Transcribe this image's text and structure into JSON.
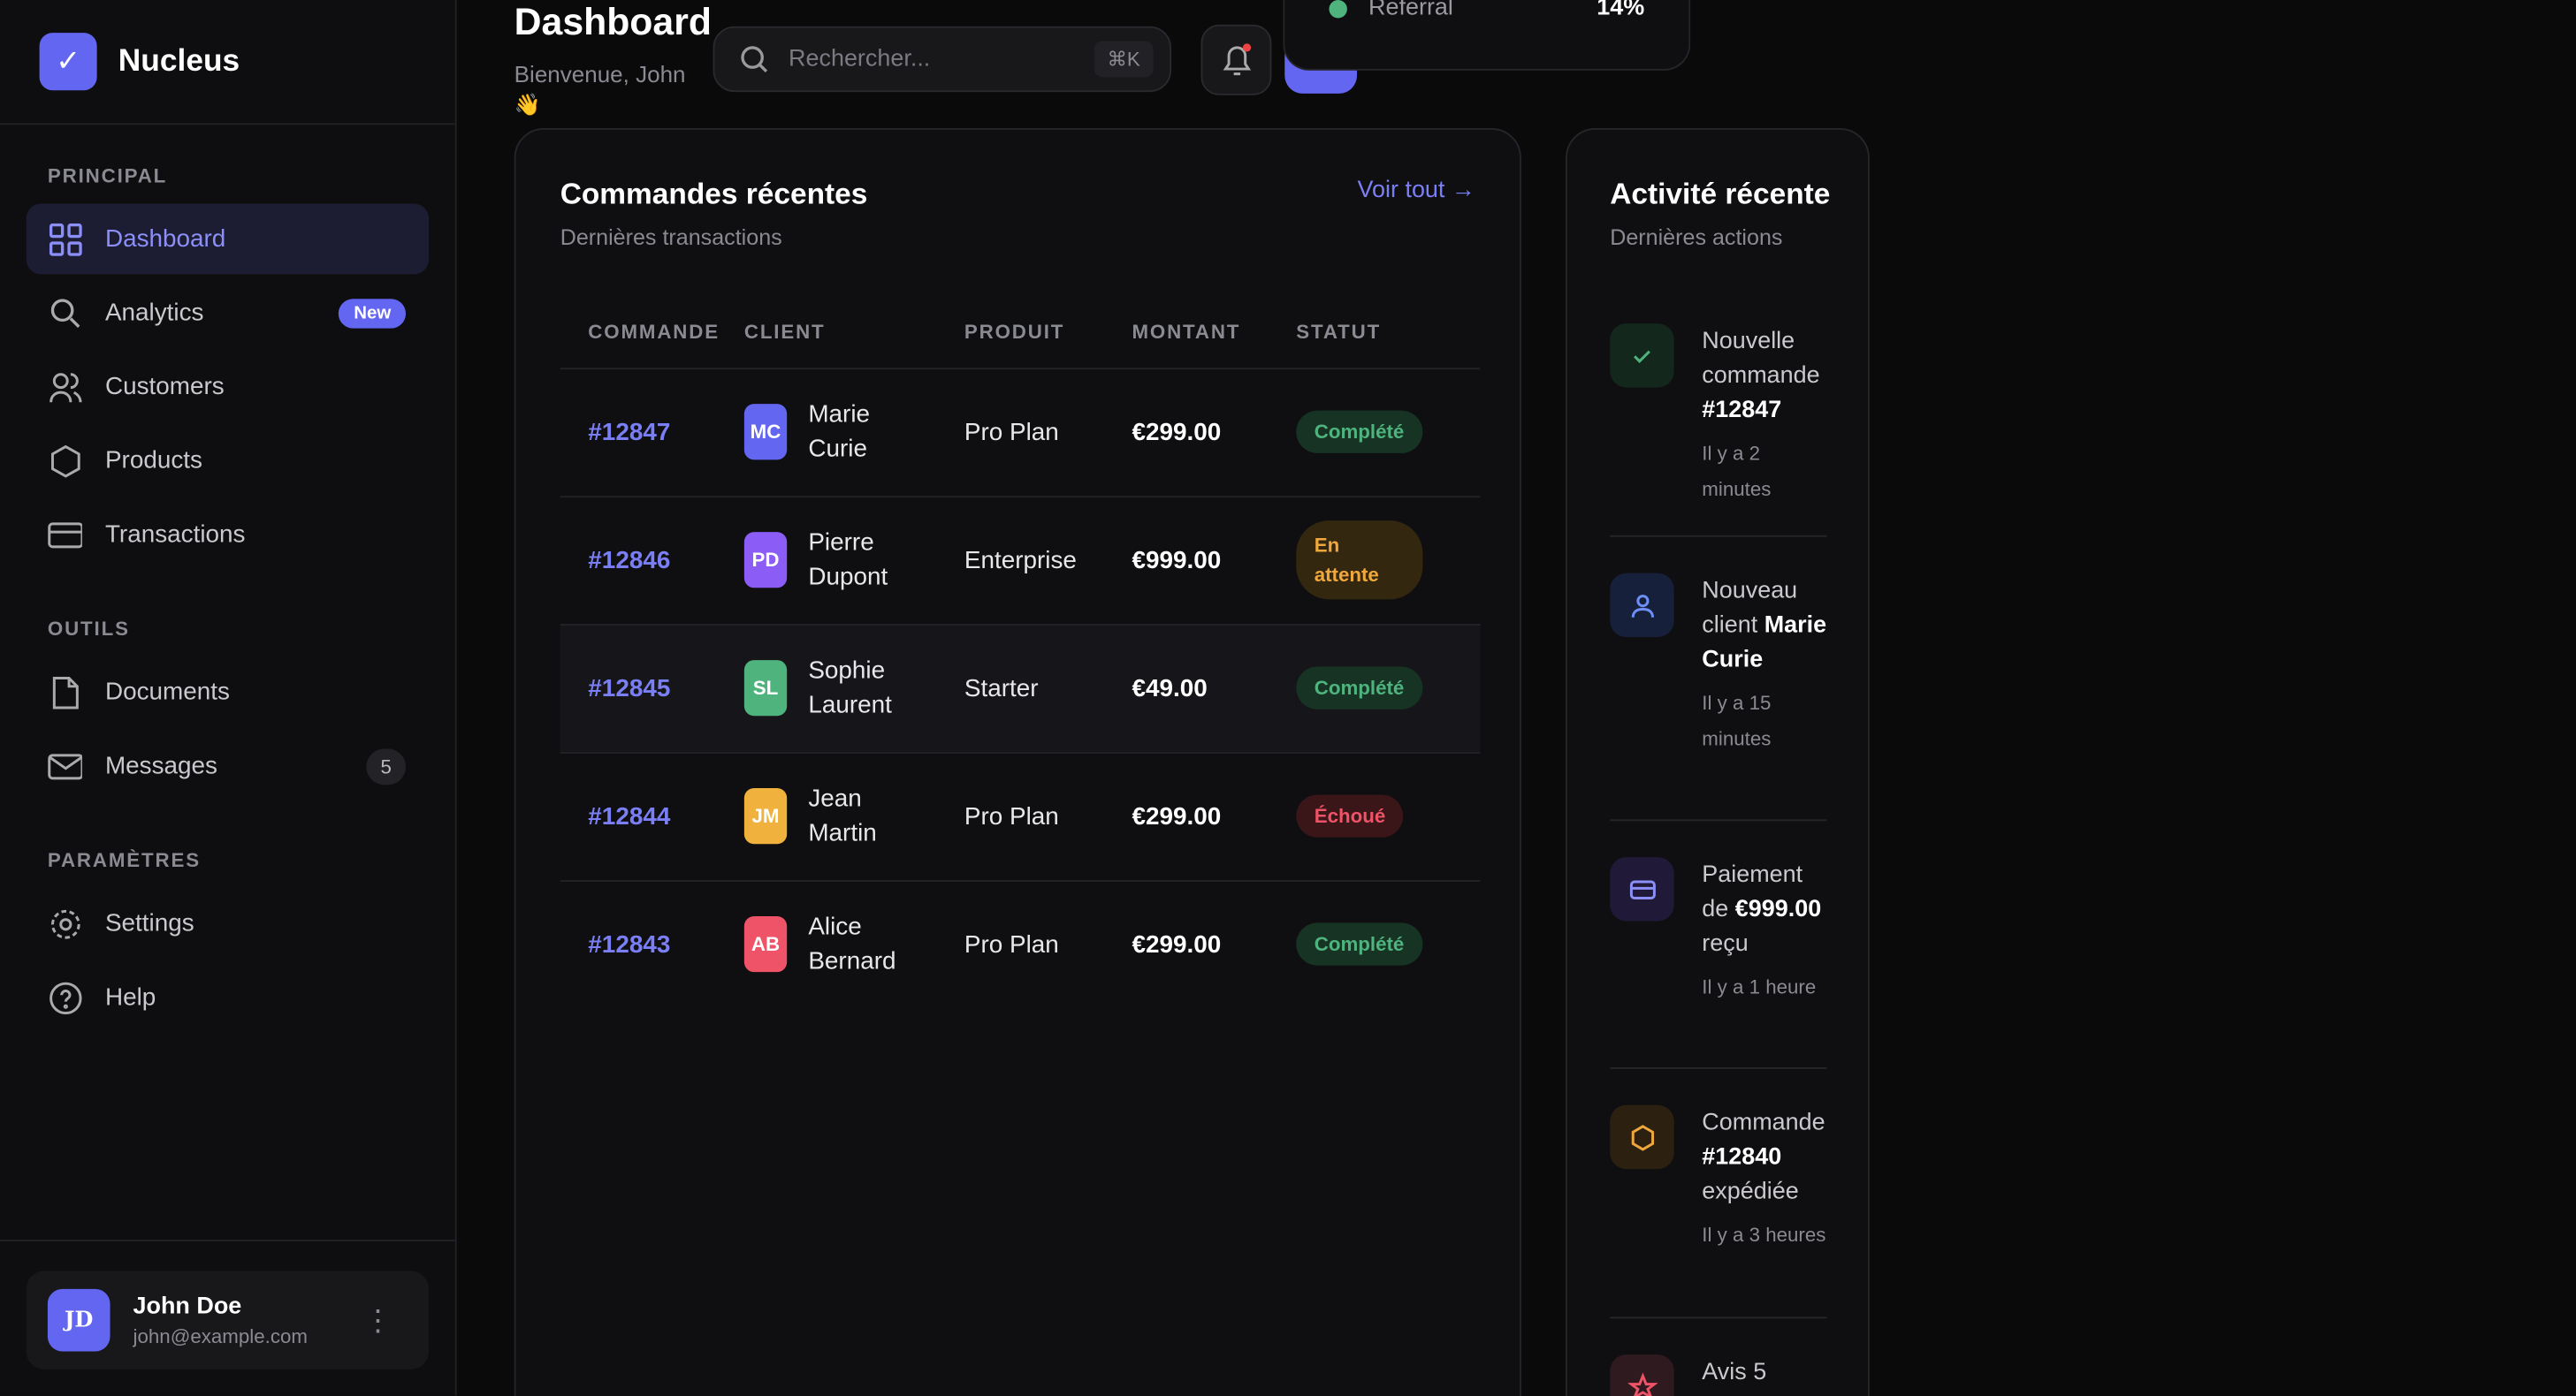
{
  "app": {
    "name": "Nucleus"
  },
  "sidebar": {
    "sections": [
      {
        "title": "PRINCIPAL",
        "items": [
          {
            "label": "Dashboard"
          },
          {
            "label": "Analytics",
            "badge": "New"
          },
          {
            "label": "Customers"
          },
          {
            "label": "Products"
          },
          {
            "label": "Transactions"
          }
        ]
      },
      {
        "title": "OUTILS",
        "items": [
          {
            "label": "Documents"
          },
          {
            "label": "Messages",
            "badge": "5"
          }
        ]
      },
      {
        "title": "PARAMÈTRES",
        "items": [
          {
            "label": "Settings"
          },
          {
            "label": "Help"
          }
        ]
      }
    ],
    "user": {
      "initials": "JD",
      "name": "John Doe",
      "email": "john@example.com"
    }
  },
  "header": {
    "title": "Dashboard",
    "subtitle": "Bienvenue, John",
    "wave": "👋",
    "search_placeholder": "Rechercher...",
    "shortcut": "⌘K",
    "avatar": "JD"
  },
  "referral": {
    "label": "Referral",
    "value": "14%",
    "color": "#4fb37e"
  },
  "orders": {
    "title": "Commandes récentes",
    "subtitle": "Dernières transactions",
    "view_all": "Voir tout →",
    "columns": [
      "COMMANDE",
      "CLIENT",
      "PRODUIT",
      "MONTANT",
      "STATUT"
    ],
    "rows": [
      {
        "id": "#12847",
        "initials": "MC",
        "first": "Marie",
        "last": "Curie",
        "product": "Pro Plan",
        "amount": "€299.00",
        "status": "Complété",
        "avatar_color": "#6366f1",
        "status_type": "ok"
      },
      {
        "id": "#12846",
        "initials": "PD",
        "first": "Pierre",
        "last": "Dupont",
        "product": "Enterprise",
        "amount": "€999.00",
        "status": "En attente",
        "avatar_color": "#8b5cf6",
        "status_type": "wait"
      },
      {
        "id": "#12845",
        "initials": "SL",
        "first": "Sophie",
        "last": "Laurent",
        "product": "Starter",
        "amount": "€49.00",
        "status": "Complété",
        "avatar_color": "#4fb37e",
        "status_type": "ok"
      },
      {
        "id": "#12844",
        "initials": "JM",
        "first": "Jean",
        "last": "Martin",
        "product": "Pro Plan",
        "amount": "€299.00",
        "status": "Échoué",
        "avatar_color": "#f0b23c",
        "status_type": "fail"
      },
      {
        "id": "#12843",
        "initials": "AB",
        "first": "Alice",
        "last": "Bernard",
        "product": "Pro Plan",
        "amount": "€299.00",
        "status": "Complété",
        "avatar_color": "#ef5367",
        "status_type": "ok"
      }
    ]
  },
  "activity": {
    "title": "Activité récente",
    "subtitle": "Dernières actions",
    "items": [
      {
        "a": "Nouvelle commande",
        "b": "#12847",
        "c": "",
        "time": "Il y a 2 minutes"
      },
      {
        "a": "Nouveau client",
        "b": "Marie Curie",
        "c": "",
        "time": "Il y a 15 minutes"
      },
      {
        "a": "Paiement de",
        "b": "€999.00",
        "c": "reçu",
        "time": "Il y a 1 heure"
      },
      {
        "a": "Commande",
        "b": "#12840",
        "c": "expédiée",
        "time": "Il y a 3 heures"
      },
      {
        "a": "Avis 5",
        "b": "",
        "c": "",
        "time": ""
      }
    ]
  }
}
